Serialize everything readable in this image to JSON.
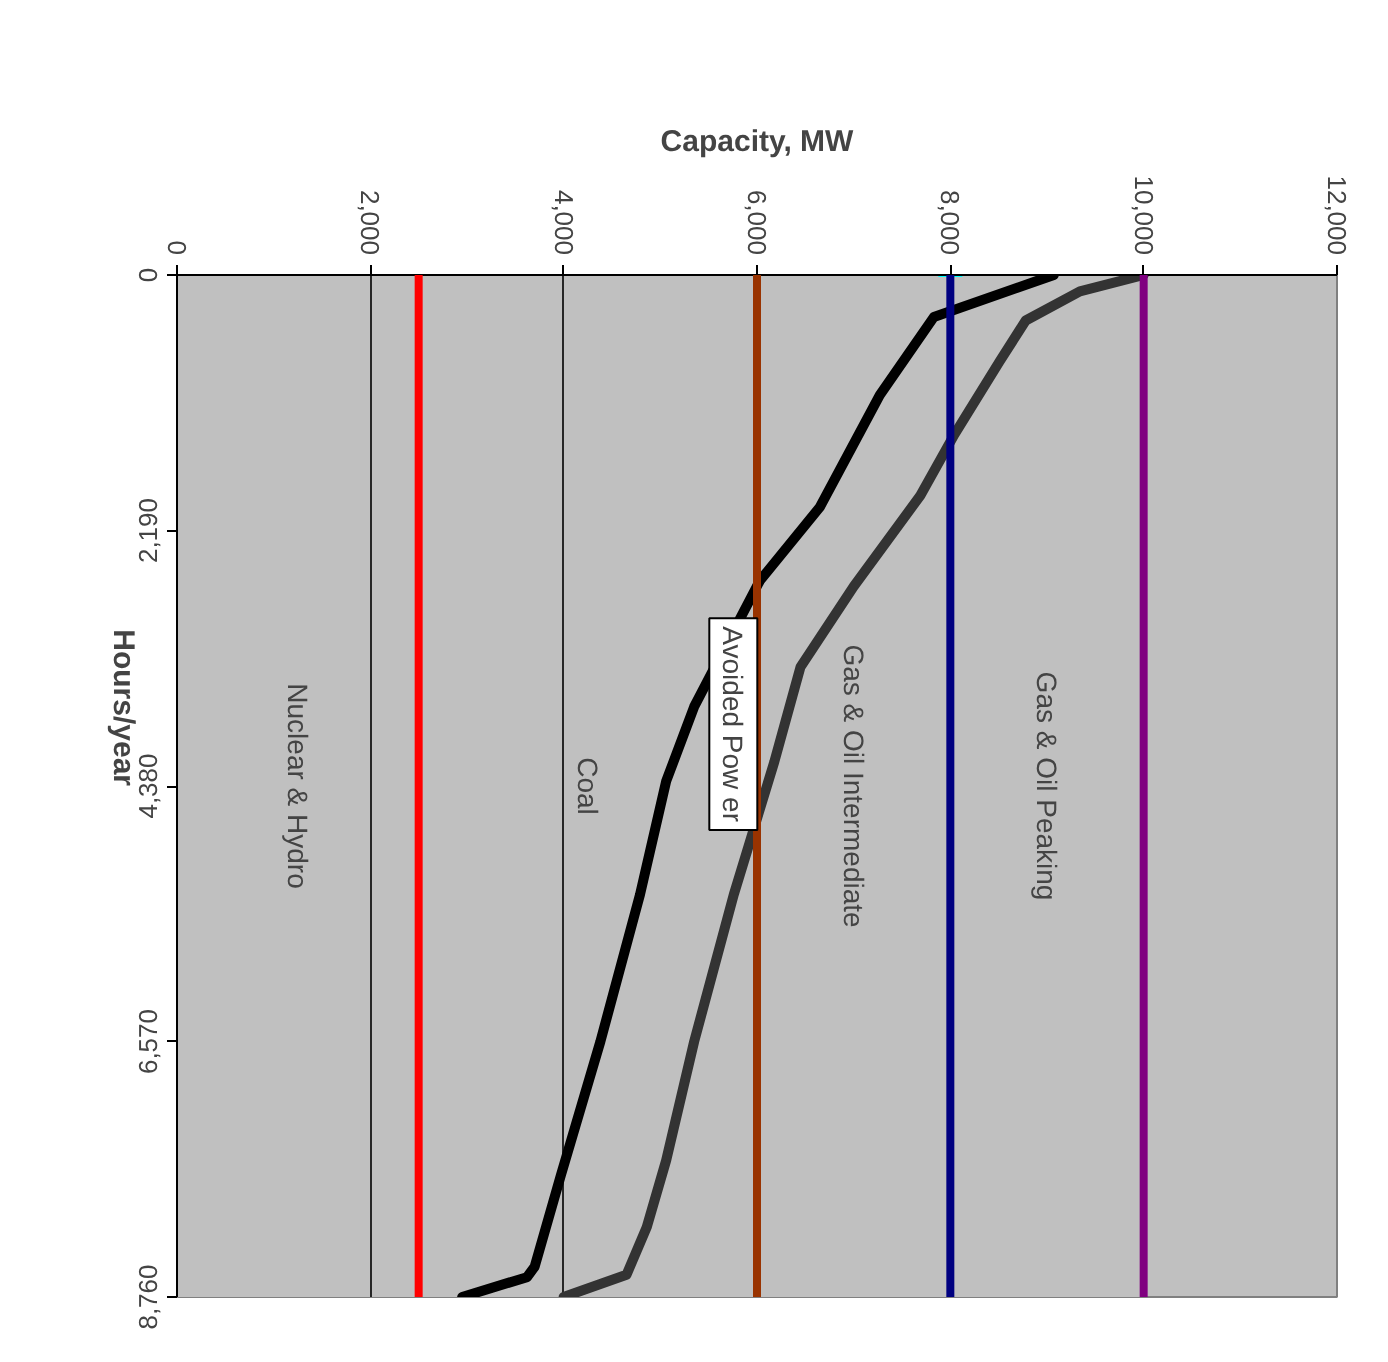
{
  "chart_data": {
    "type": "line",
    "xlabel": "Capacity, MW",
    "ylabel": "Hours/year",
    "xlim": [
      0,
      12000
    ],
    "xticks": [
      0,
      {
        "value": 2000,
        "label": "2,000"
      },
      {
        "value": 4000,
        "label": "4,000"
      },
      {
        "value": 6000,
        "label": "6,000"
      },
      {
        "value": 8000,
        "label": "8,000"
      },
      {
        "value": 10000,
        "label": "10,000"
      },
      {
        "value": 12000,
        "label": "12,000"
      }
    ],
    "ylim": [
      8760,
      0
    ],
    "yticks": [
      0,
      {
        "value": 2190,
        "label": "2,190"
      },
      {
        "value": 4380,
        "label": "4,380"
      },
      {
        "value": 6570,
        "label": "6,570"
      },
      {
        "value": 8760,
        "label": "8,760"
      }
    ],
    "grid": "x",
    "series": [
      {
        "color": "#000000",
        "x": [
          9070,
          7830,
          7270,
          6650,
          6030,
          5350,
          5060,
          4790,
          4380,
          3970,
          3700,
          3620,
          2950
        ],
        "values": [
          0,
          360,
          1030,
          1990,
          2620,
          3700,
          4340,
          5310,
          6570,
          7720,
          8500,
          8590,
          8760
        ]
      },
      {
        "color": "#333333",
        "x": [
          10000,
          9340,
          8780,
          8510,
          8040,
          7690,
          7000,
          6450,
          6180,
          5760,
          5350,
          5060,
          4860,
          4650,
          4000
        ],
        "values": [
          0,
          140,
          390,
          740,
          1370,
          1890,
          2670,
          3360,
          4170,
          5310,
          6570,
          7590,
          8160,
          8570,
          8760
        ]
      },
      {
        "type": "scatter",
        "marker": "cross",
        "color": "#00ffff",
        "x": [
          8000
        ],
        "values": [
          0
        ]
      }
    ],
    "ref_lines": [
      {
        "axis": "x",
        "value": 2500,
        "color": "#ff0000"
      },
      {
        "axis": "x",
        "value": 6000,
        "color": "#993300"
      },
      {
        "axis": "x",
        "value": 8000,
        "color": "#000080"
      },
      {
        "axis": "x",
        "value": 10000,
        "color": "#800080"
      }
    ],
    "bands": [
      {
        "axis": "x",
        "from": 0,
        "to": 2500,
        "label": "Nuclear & Hydro",
        "color": "#c0c0c0"
      },
      {
        "axis": "x",
        "from": 2500,
        "to": 6000,
        "label": "Coal",
        "color": "#c0c0c0"
      },
      {
        "axis": "x",
        "from": 6000,
        "to": 8000,
        "label": "Gas & Oil Intermediate",
        "color": "#c0c0c0"
      },
      {
        "axis": "x",
        "from": 8000,
        "to": 10000,
        "label": "Gas & Oil Peaking",
        "color": "#c0c0c0"
      }
    ],
    "annotations": [
      "Avoided Pow er"
    ]
  }
}
